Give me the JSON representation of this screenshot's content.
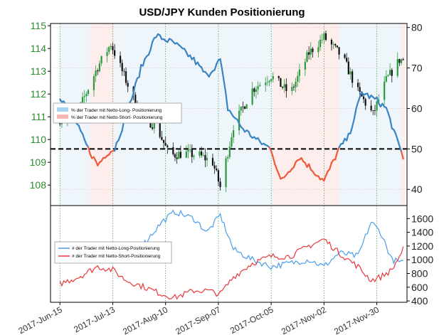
{
  "chart_data": {
    "title": "USD/JPY Kunden Positionierung",
    "type": "line",
    "x_ticks": [
      "2017-Jun-15",
      "2017-Jul-13",
      "2017-Aug-10",
      "2017-Sep-07",
      "2017-Oct-05",
      "2017-Nov-02",
      "2017-Nov-30"
    ],
    "grid": "dotted green vertical",
    "top_panel": {
      "left_axis": {
        "ticks": [
          108,
          109,
          110,
          111,
          112,
          113,
          114,
          115
        ],
        "range": [
          107.1,
          115.1
        ]
      },
      "right_axis": {
        "ticks": [
          40,
          50,
          60,
          70,
          80
        ],
        "range": [
          36,
          81
        ],
        "reference_line": 50
      },
      "legend": {
        "placement": "middle-left",
        "entries": [
          {
            "label": "% der Trader mit Netto-Long- Positionierung",
            "color": "#a7d3f2"
          },
          {
            "label": "% der Trader mit Netto-Short- Positionierung",
            "color": "#f7b8b3"
          }
        ]
      },
      "price_series": [
        {
          "date": "2017-06-15",
          "value": 110.9
        },
        {
          "date": "2017-06-25",
          "value": 111.3
        },
        {
          "date": "2017-07-05",
          "value": 113.2
        },
        {
          "date": "2017-07-12",
          "value": 114.2
        },
        {
          "date": "2017-07-20",
          "value": 112.6
        },
        {
          "date": "2017-07-28",
          "value": 111.0
        },
        {
          "date": "2017-08-05",
          "value": 110.6
        },
        {
          "date": "2017-08-12",
          "value": 109.3
        },
        {
          "date": "2017-08-20",
          "value": 109.4
        },
        {
          "date": "2017-08-28",
          "value": 109.3
        },
        {
          "date": "2017-09-04",
          "value": 109.0
        },
        {
          "date": "2017-09-08",
          "value": 107.9
        },
        {
          "date": "2017-09-15",
          "value": 110.6
        },
        {
          "date": "2017-09-25",
          "value": 112.2
        },
        {
          "date": "2017-10-05",
          "value": 112.8
        },
        {
          "date": "2017-10-15",
          "value": 112.0
        },
        {
          "date": "2017-10-25",
          "value": 113.8
        },
        {
          "date": "2017-11-02",
          "value": 114.5
        },
        {
          "date": "2017-11-12",
          "value": 113.6
        },
        {
          "date": "2017-11-20",
          "value": 112.1
        },
        {
          "date": "2017-11-28",
          "value": 111.1
        },
        {
          "date": "2017-12-05",
          "value": 112.6
        },
        {
          "date": "2017-12-12",
          "value": 113.5
        }
      ],
      "pct_net_long": [
        {
          "date": "2017-06-15",
          "value": 63
        },
        {
          "date": "2017-06-22",
          "value": 58
        },
        {
          "date": "2017-06-30",
          "value": 50
        },
        {
          "date": "2017-07-05",
          "value": 46
        },
        {
          "date": "2017-07-10",
          "value": 49
        },
        {
          "date": "2017-07-14",
          "value": 50
        },
        {
          "date": "2017-07-20",
          "value": 58
        },
        {
          "date": "2017-07-28",
          "value": 70
        },
        {
          "date": "2017-08-05",
          "value": 78
        },
        {
          "date": "2017-08-15",
          "value": 76
        },
        {
          "date": "2017-08-25",
          "value": 72
        },
        {
          "date": "2017-09-01",
          "value": 68
        },
        {
          "date": "2017-09-08",
          "value": 72
        },
        {
          "date": "2017-09-12",
          "value": 60
        },
        {
          "date": "2017-09-20",
          "value": 55
        },
        {
          "date": "2017-09-28",
          "value": 52
        },
        {
          "date": "2017-10-05",
          "value": 50
        },
        {
          "date": "2017-10-10",
          "value": 42
        },
        {
          "date": "2017-10-20",
          "value": 48
        },
        {
          "date": "2017-11-02",
          "value": 42
        },
        {
          "date": "2017-11-10",
          "value": 50
        },
        {
          "date": "2017-11-15",
          "value": 53
        },
        {
          "date": "2017-11-22",
          "value": 64
        },
        {
          "date": "2017-11-30",
          "value": 62
        },
        {
          "date": "2017-12-05",
          "value": 60
        },
        {
          "date": "2017-12-10",
          "value": 53
        },
        {
          "date": "2017-12-14",
          "value": 48
        }
      ]
    },
    "bottom_panel": {
      "right_axis": {
        "ticks": [
          400,
          600,
          800,
          1000,
          1200,
          1400,
          1600
        ],
        "range": [
          380,
          1790
        ]
      },
      "legend": {
        "placement": "middle-left",
        "entries": [
          {
            "label": "# der Trader mit Netto-Long-Positionierung",
            "color": "#4a9de8"
          },
          {
            "label": "# der Trader mit Netto-Short-Positionierung",
            "color": "#e8383d"
          }
        ]
      },
      "long_traders": [
        {
          "date": "2017-06-15",
          "value": 1000
        },
        {
          "date": "2017-06-25",
          "value": 1050
        },
        {
          "date": "2017-07-05",
          "value": 1000
        },
        {
          "date": "2017-07-13",
          "value": 1000
        },
        {
          "date": "2017-07-20",
          "value": 1150
        },
        {
          "date": "2017-07-30",
          "value": 1250
        },
        {
          "date": "2017-08-08",
          "value": 1550
        },
        {
          "date": "2017-08-15",
          "value": 1700
        },
        {
          "date": "2017-08-25",
          "value": 1600
        },
        {
          "date": "2017-09-01",
          "value": 1400
        },
        {
          "date": "2017-09-08",
          "value": 1650
        },
        {
          "date": "2017-09-15",
          "value": 1150
        },
        {
          "date": "2017-09-25",
          "value": 1000
        },
        {
          "date": "2017-10-05",
          "value": 900
        },
        {
          "date": "2017-10-15",
          "value": 950
        },
        {
          "date": "2017-10-25",
          "value": 1000
        },
        {
          "date": "2017-11-02",
          "value": 900
        },
        {
          "date": "2017-11-10",
          "value": 1100
        },
        {
          "date": "2017-11-20",
          "value": 1050
        },
        {
          "date": "2017-11-27",
          "value": 1550
        },
        {
          "date": "2017-12-02",
          "value": 1400
        },
        {
          "date": "2017-12-08",
          "value": 1000
        },
        {
          "date": "2017-12-14",
          "value": 950
        }
      ],
      "short_traders": [
        {
          "date": "2017-06-15",
          "value": 650
        },
        {
          "date": "2017-06-25",
          "value": 750
        },
        {
          "date": "2017-07-05",
          "value": 900
        },
        {
          "date": "2017-07-13",
          "value": 850
        },
        {
          "date": "2017-07-20",
          "value": 700
        },
        {
          "date": "2017-07-30",
          "value": 600
        },
        {
          "date": "2017-08-08",
          "value": 500
        },
        {
          "date": "2017-08-15",
          "value": 450
        },
        {
          "date": "2017-08-25",
          "value": 550
        },
        {
          "date": "2017-09-01",
          "value": 550
        },
        {
          "date": "2017-09-08",
          "value": 500
        },
        {
          "date": "2017-09-15",
          "value": 750
        },
        {
          "date": "2017-09-25",
          "value": 950
        },
        {
          "date": "2017-10-05",
          "value": 1050
        },
        {
          "date": "2017-10-15",
          "value": 1050
        },
        {
          "date": "2017-10-25",
          "value": 1200
        },
        {
          "date": "2017-11-02",
          "value": 1300
        },
        {
          "date": "2017-11-10",
          "value": 1100
        },
        {
          "date": "2017-11-20",
          "value": 900
        },
        {
          "date": "2017-11-27",
          "value": 700
        },
        {
          "date": "2017-12-02",
          "value": 750
        },
        {
          "date": "2017-12-08",
          "value": 850
        },
        {
          "date": "2017-12-14",
          "value": 1150
        }
      ]
    }
  }
}
